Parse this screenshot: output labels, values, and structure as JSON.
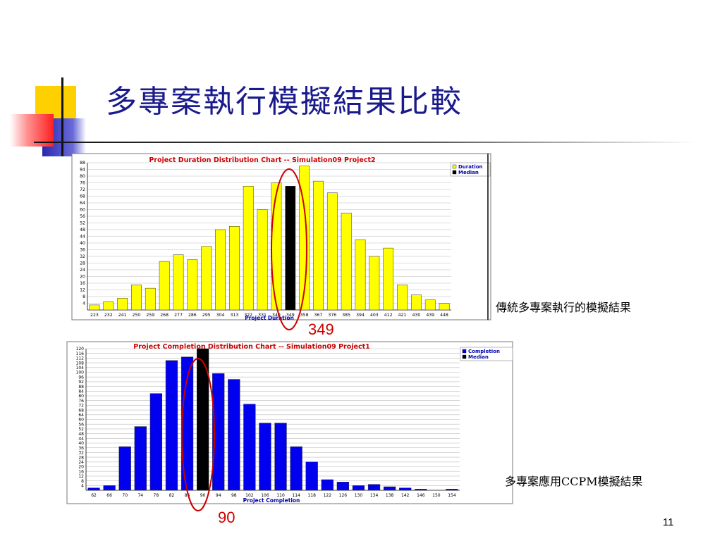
{
  "slide": {
    "title": "多專案執行模擬結果比較",
    "page_number": "11",
    "highlight_top": "349",
    "highlight_bottom": "90",
    "caption_top": "傳統多專案執行的模擬結果",
    "caption_bottom": "多專案應用CCPM模擬結果"
  },
  "colors": {
    "title": "#1a1a8c",
    "duration_bar": "#ffff00",
    "completion_bar": "#0000ee",
    "median_bar": "#000000",
    "chart_title": "#cc0000",
    "axis_title": "#0000aa",
    "ellipse": "#cc0000"
  },
  "chart_data": [
    {
      "type": "bar",
      "title": "Project Duration Distribution Chart -- Simulation09 Project2",
      "xlabel": "Project Duration",
      "ylabel": "",
      "ylim": [
        0,
        88
      ],
      "ytick_step": 4,
      "grid": true,
      "legend_position": "top-right",
      "legend": [
        "Duration",
        "Median"
      ],
      "categories": [
        "223",
        "232",
        "241",
        "250",
        "259",
        "268",
        "277",
        "286",
        "295",
        "304",
        "313",
        "322",
        "331",
        "340",
        "349",
        "358",
        "367",
        "376",
        "385",
        "394",
        "403",
        "412",
        "421",
        "430",
        "439",
        "448"
      ],
      "values": [
        3,
        5,
        7,
        15,
        13,
        29,
        33,
        30,
        38,
        48,
        50,
        74,
        60,
        76,
        74,
        86,
        77,
        70,
        58,
        42,
        32,
        37,
        15,
        9,
        6,
        4
      ],
      "median_category": "349",
      "highlighted_category": "349"
    },
    {
      "type": "bar",
      "title": "Project Completion Distribution Chart -- Simulation09 Project1",
      "xlabel": "Project Completion",
      "ylabel": "",
      "ylim": [
        0,
        120
      ],
      "ytick_step": 4,
      "grid": true,
      "legend_position": "top-right",
      "legend": [
        "Completion",
        "Median"
      ],
      "categories": [
        "62",
        "66",
        "70",
        "74",
        "78",
        "82",
        "86",
        "90",
        "94",
        "98",
        "102",
        "106",
        "110",
        "114",
        "118",
        "122",
        "126",
        "130",
        "134",
        "138",
        "142",
        "146",
        "150",
        "154"
      ],
      "values": [
        2,
        4,
        37,
        54,
        82,
        110,
        113,
        120,
        99,
        94,
        73,
        57,
        57,
        37,
        24,
        9,
        7,
        4,
        5,
        3,
        2,
        1,
        0,
        1
      ],
      "median_category": "90",
      "highlighted_category": "90"
    }
  ]
}
